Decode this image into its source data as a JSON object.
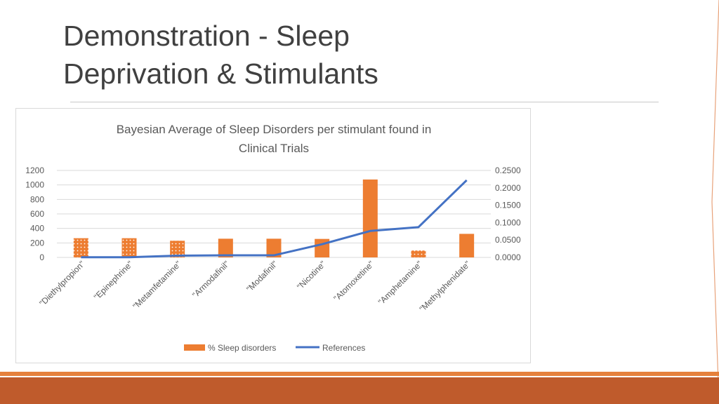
{
  "slide": {
    "title_line1": "Demonstration - Sleep",
    "title_line2": "Deprivation & Stimulants"
  },
  "colors": {
    "bar": "#ed7d31",
    "line": "#4472c4",
    "accent_footer": "#bf5b2c",
    "accent_thin": "#e5803c"
  },
  "chart_data": {
    "type": "bar",
    "title": "Bayesian Average of Sleep Disorders per stimulant found in Clinical Trials",
    "title_line1": "Bayesian Average of Sleep Disorders per stimulant found in",
    "title_line2": "Clinical Trials",
    "categories": [
      "\"Diethylpropion\"",
      "\"Epinephrine\"",
      "\"Metamfetamine\"",
      "\"Armodafinil\"",
      "\"Modafinil\"",
      "\"Nicotine\"",
      "\"Atomoxetine\"",
      "\"Amphetamine\"",
      "\"Methylphenidate\""
    ],
    "series": [
      {
        "name": "% Sleep disorders",
        "type": "bar",
        "axis": "left",
        "values": [
          265,
          265,
          230,
          258,
          258,
          255,
          1075,
          95,
          325
        ],
        "dotted": [
          true,
          true,
          true,
          false,
          false,
          false,
          false,
          true,
          false
        ]
      },
      {
        "name": "References",
        "type": "line",
        "axis": "right",
        "values": [
          0.0005,
          0.0005,
          0.005,
          0.006,
          0.006,
          0.038,
          0.076,
          0.087,
          0.222
        ]
      }
    ],
    "ylim_left": [
      0,
      1200
    ],
    "ylim_right": [
      0,
      0.25
    ],
    "yticks_left": [
      "0",
      "200",
      "400",
      "600",
      "800",
      "1000",
      "1200"
    ],
    "yticks_right": [
      "0.0000",
      "0.0500",
      "0.1000",
      "0.1500",
      "0.2000",
      "0.2500"
    ],
    "legend_position": "bottom",
    "grid": true
  }
}
